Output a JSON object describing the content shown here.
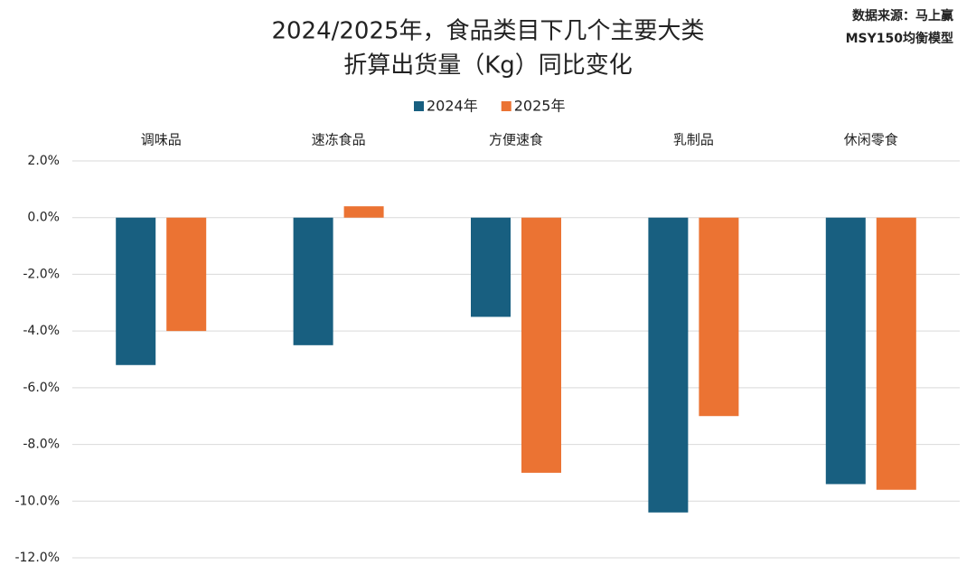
{
  "chart_data": {
    "type": "bar",
    "title": [
      "2024/2025年，食品类目下几个主要大类",
      "折算出货量（Kg）同比变化"
    ],
    "source": [
      "数据来源：马上赢",
      "MSY150均衡模型"
    ],
    "categories": [
      "调味品",
      "速冻食品",
      "方便速食",
      "乳制品",
      "休闲零食"
    ],
    "series": [
      {
        "name": "2024年",
        "color": "#185f80",
        "values": [
          -5.2,
          -4.5,
          -3.5,
          -10.4,
          -9.4
        ]
      },
      {
        "name": "2025年",
        "color": "#eb7333",
        "values": [
          -4.0,
          0.4,
          -9.0,
          -7.0,
          -9.6
        ]
      }
    ],
    "ylim": [
      -12,
      2
    ],
    "yticks": [
      {
        "value": 2,
        "label": "2.0%"
      },
      {
        "value": 0,
        "label": "0.0%"
      },
      {
        "value": -2,
        "label": "-2.0%"
      },
      {
        "value": -4,
        "label": "-4.0%"
      },
      {
        "value": -6,
        "label": "-6.0%"
      },
      {
        "value": -8,
        "label": "-8.0%"
      },
      {
        "value": -10,
        "label": "-10.0%"
      },
      {
        "value": -12,
        "label": "-12.0%"
      }
    ],
    "grid": true
  }
}
